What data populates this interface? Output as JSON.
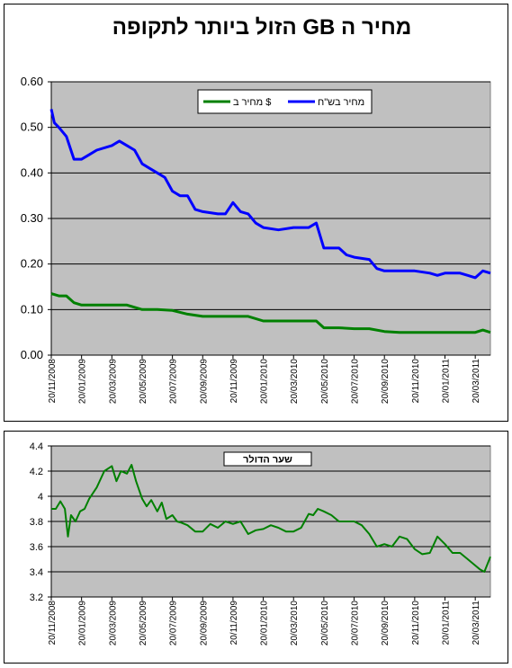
{
  "colors": {
    "plot_bg": "#c0c0c0",
    "blue_series": "#0000ff",
    "green_series": "#008000",
    "grid": "#000000"
  },
  "chart_data": [
    {
      "type": "line",
      "title": "מחיר ה GB הזול ביותר לתקופה",
      "xlabel": "",
      "ylabel": "",
      "ylim": [
        0,
        0.6
      ],
      "yticks": [
        "0.00",
        "0.10",
        "0.20",
        "0.30",
        "0.40",
        "0.50",
        "0.60"
      ],
      "xticks": [
        "20/11/2008",
        "20/01/2009",
        "20/03/2009",
        "20/05/2009",
        "20/07/2009",
        "20/09/2009",
        "20/11/2009",
        "20/01/2010",
        "20/03/2010",
        "20/05/2010",
        "20/07/2010",
        "20/09/2010",
        "20/11/2010",
        "20/01/2011",
        "20/03/2011"
      ],
      "xlim": [
        0,
        29
      ],
      "grid": true,
      "legend_position": "top-center",
      "series": [
        {
          "name": "מחיר ב $",
          "color": "#008000",
          "x": [
            0,
            0.5,
            1,
            1.5,
            2,
            2.5,
            3,
            4,
            5,
            6,
            7,
            8,
            9,
            10,
            11,
            12,
            13,
            14,
            15,
            16,
            17,
            17.5,
            18,
            19,
            20,
            21,
            22,
            23,
            24,
            25,
            26,
            27,
            28,
            28.5,
            29
          ],
          "values": [
            0.135,
            0.13,
            0.13,
            0.115,
            0.11,
            0.11,
            0.11,
            0.11,
            0.11,
            0.1,
            0.1,
            0.098,
            0.09,
            0.085,
            0.085,
            0.085,
            0.085,
            0.075,
            0.075,
            0.075,
            0.075,
            0.075,
            0.06,
            0.06,
            0.058,
            0.058,
            0.052,
            0.05,
            0.05,
            0.05,
            0.05,
            0.05,
            0.05,
            0.055,
            0.05
          ]
        },
        {
          "name": "מחיר בש\"ח",
          "color": "#0000ff",
          "x": [
            0,
            0.2,
            0.5,
            1,
            1.5,
            2,
            2.5,
            3,
            4,
            4.5,
            5,
            5.5,
            6,
            6.5,
            7,
            7.5,
            8,
            8.5,
            9,
            9.5,
            10,
            11,
            11.5,
            12,
            12.5,
            13,
            13.5,
            14,
            15,
            16,
            17,
            17.5,
            18,
            19,
            19.5,
            20,
            21,
            21.5,
            22,
            23,
            24,
            25,
            25.5,
            26,
            27,
            27.5,
            28,
            28.5,
            29
          ],
          "values": [
            0.54,
            0.51,
            0.5,
            0.48,
            0.43,
            0.43,
            0.44,
            0.45,
            0.46,
            0.47,
            0.46,
            0.45,
            0.42,
            0.41,
            0.4,
            0.39,
            0.36,
            0.35,
            0.35,
            0.32,
            0.315,
            0.31,
            0.31,
            0.335,
            0.315,
            0.31,
            0.29,
            0.28,
            0.275,
            0.28,
            0.28,
            0.29,
            0.235,
            0.235,
            0.22,
            0.215,
            0.21,
            0.19,
            0.185,
            0.185,
            0.185,
            0.18,
            0.175,
            0.18,
            0.18,
            0.175,
            0.17,
            0.185,
            0.18
          ]
        }
      ]
    },
    {
      "type": "line",
      "title": "",
      "xlabel": "",
      "ylabel": "",
      "ylim": [
        3.2,
        4.4
      ],
      "yticks": [
        "3.2",
        "3.4",
        "3.6",
        "3.8",
        "4",
        "4.2",
        "4.4"
      ],
      "xticks": [
        "20/11/2008",
        "20/01/2009",
        "20/03/2009",
        "20/05/2009",
        "20/07/2009",
        "20/09/2009",
        "20/11/2009",
        "20/01/2010",
        "20/03/2010",
        "20/05/2010",
        "20/07/2010",
        "20/09/2010",
        "20/11/2010",
        "20/01/2011",
        "20/03/2011"
      ],
      "xlim": [
        0,
        29
      ],
      "grid": true,
      "legend_position": "top-center",
      "series": [
        {
          "name": "שער הדולר",
          "color": "#008000",
          "x": [
            0,
            0.3,
            0.6,
            0.9,
            1.1,
            1.3,
            1.6,
            1.9,
            2.2,
            2.5,
            3,
            3.5,
            4,
            4.3,
            4.6,
            5,
            5.3,
            5.6,
            6,
            6.3,
            6.6,
            7,
            7.3,
            7.6,
            8,
            8.3,
            8.6,
            9,
            9.5,
            10,
            10.5,
            11,
            11.5,
            12,
            12.5,
            13,
            13.5,
            14,
            14.5,
            15,
            15.5,
            16,
            16.5,
            17,
            17.3,
            17.6,
            18,
            18.5,
            19,
            19.5,
            20,
            20.5,
            21,
            21.5,
            22,
            22.5,
            23,
            23.5,
            24,
            24.5,
            25,
            25.5,
            26,
            26.5,
            27,
            27.5,
            28,
            28.3,
            28.6,
            29
          ],
          "values": [
            3.9,
            3.9,
            3.96,
            3.9,
            3.68,
            3.85,
            3.8,
            3.88,
            3.9,
            3.98,
            4.07,
            4.2,
            4.24,
            4.12,
            4.2,
            4.18,
            4.25,
            4.12,
            3.98,
            3.92,
            3.97,
            3.88,
            3.95,
            3.82,
            3.85,
            3.8,
            3.79,
            3.77,
            3.72,
            3.72,
            3.78,
            3.75,
            3.8,
            3.78,
            3.8,
            3.7,
            3.73,
            3.74,
            3.77,
            3.75,
            3.72,
            3.72,
            3.75,
            3.86,
            3.85,
            3.9,
            3.88,
            3.85,
            3.8,
            3.8,
            3.8,
            3.77,
            3.7,
            3.6,
            3.62,
            3.6,
            3.68,
            3.66,
            3.58,
            3.54,
            3.55,
            3.68,
            3.62,
            3.55,
            3.55,
            3.5,
            3.45,
            3.42,
            3.4,
            3.52
          ]
        }
      ]
    }
  ]
}
